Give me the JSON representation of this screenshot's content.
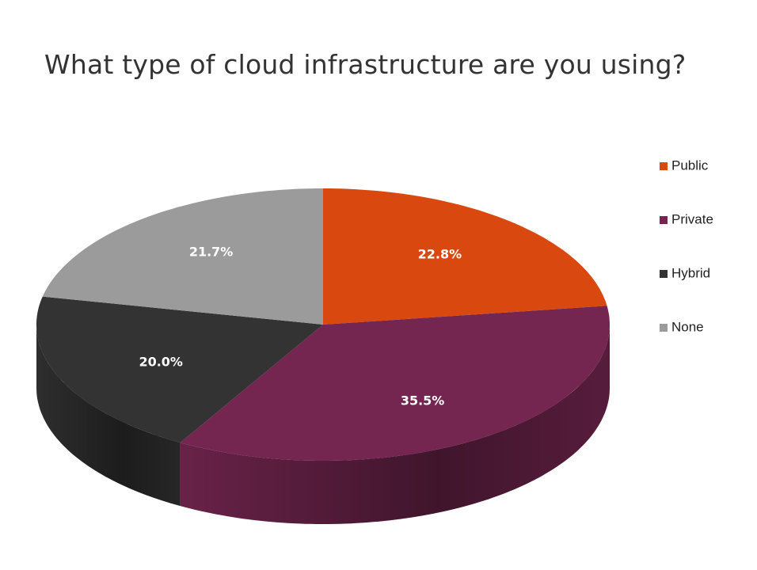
{
  "chart_data": {
    "type": "pie",
    "title": "What type of cloud infrastructure are you using?",
    "categories": [
      "Public",
      "Private",
      "Hybrid",
      "None"
    ],
    "values": [
      22.8,
      35.5,
      20.0,
      21.7
    ],
    "labels": [
      "22.8%",
      "35.5%",
      "20.0%",
      "21.7%"
    ],
    "colors": [
      "#d9480f",
      "#742650",
      "#333333",
      "#9b9b9b"
    ],
    "legend_position": "right",
    "style": "3d"
  }
}
